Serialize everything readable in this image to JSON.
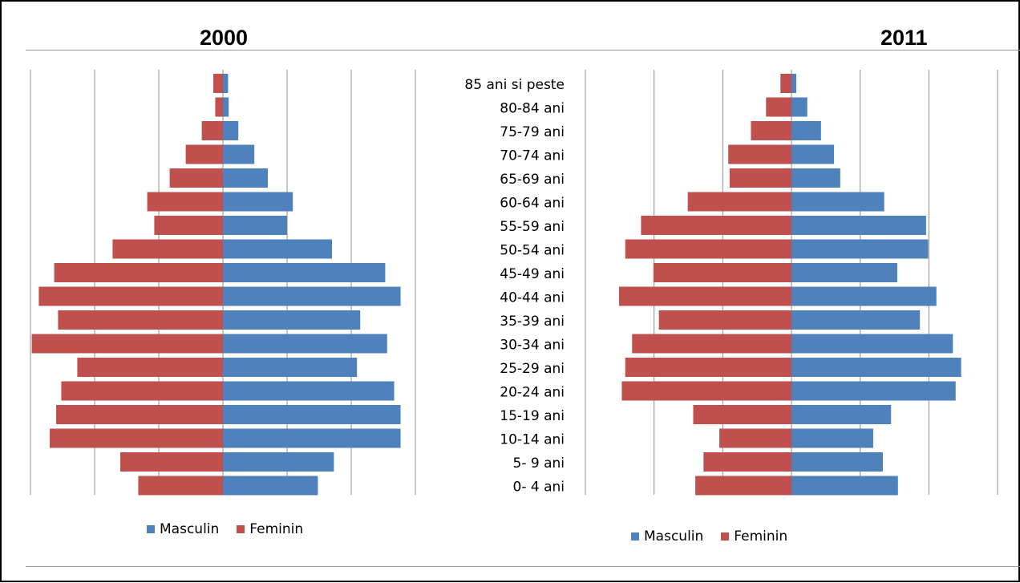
{
  "colors": {
    "masculin": "#4f81bd",
    "feminin": "#c0504d",
    "grid": "#8c8c8c"
  },
  "legend": {
    "masculin": "Masculin",
    "feminin": "Feminin"
  },
  "age_groups": [
    "85 ani si peste",
    "80-84 ani",
    "75-79 ani",
    "70-74 ani",
    "65-69 ani",
    "60-64 ani",
    "55-59 ani",
    "50-54 ani",
    "45-49 ani",
    "40-44 ani",
    "35-39 ani",
    "30-34 ani",
    "25-29 ani",
    "20-24 ani",
    "15-19 ani",
    "10-14 ani",
    "5- 9 ani",
    "0- 4 ani"
  ],
  "chart_data": [
    {
      "type": "bar",
      "title": "2000",
      "categories": [
        "85 ani si peste",
        "80-84 ani",
        "75-79 ani",
        "70-74 ani",
        "65-69 ani",
        "60-64 ani",
        "55-59 ani",
        "50-54 ani",
        "45-49 ani",
        "40-44 ani",
        "35-39 ani",
        "30-34 ani",
        "25-29 ani",
        "20-24 ani",
        "15-19 ani",
        "10-14 ani",
        "5- 9 ani",
        "0- 4 ani"
      ],
      "series": [
        {
          "name": "Masculin",
          "values": [
            0.08,
            0.09,
            0.24,
            0.49,
            0.7,
            1.09,
            1.0,
            1.7,
            2.53,
            2.77,
            2.14,
            2.56,
            2.09,
            2.67,
            2.77,
            2.77,
            1.73,
            1.48
          ]
        },
        {
          "name": "Feminin",
          "values": [
            0.15,
            0.12,
            0.33,
            0.58,
            0.83,
            1.18,
            1.07,
            1.72,
            2.63,
            2.87,
            2.57,
            2.98,
            2.27,
            2.52,
            2.6,
            2.7,
            1.6,
            1.32
          ]
        }
      ],
      "xlim": [
        -3.0,
        3.0
      ],
      "xticks": [
        -3,
        -2,
        -1,
        0,
        1,
        2,
        3
      ],
      "grid": true,
      "legend_position": "bottom"
    },
    {
      "type": "bar",
      "title": "2011",
      "categories": [
        "85 ani si peste",
        "80-84 ani",
        "75-79 ani",
        "70-74 ani",
        "65-69 ani",
        "60-64 ani",
        "55-59 ani",
        "50-54 ani",
        "45-49 ani",
        "40-44 ani",
        "35-39 ani",
        "30-34 ani",
        "25-29 ani",
        "20-24 ani",
        "15-19 ani",
        "10-14 ani",
        "5- 9 ani",
        "0- 4 ani"
      ],
      "series": [
        {
          "name": "Masculin",
          "values": [
            0.07,
            0.23,
            0.43,
            0.62,
            0.71,
            1.35,
            1.96,
            1.99,
            1.54,
            2.11,
            1.87,
            2.35,
            2.47,
            2.39,
            1.45,
            1.19,
            1.33,
            1.55
          ]
        },
        {
          "name": "Feminin",
          "values": [
            0.16,
            0.37,
            0.59,
            0.92,
            0.9,
            1.51,
            2.19,
            2.42,
            2.01,
            2.51,
            1.93,
            2.32,
            2.42,
            2.47,
            1.43,
            1.05,
            1.28,
            1.4
          ]
        }
      ],
      "xlim": [
        -3.0,
        3.0
      ],
      "xticks": [
        -3,
        -2,
        -1,
        0,
        1,
        2,
        3
      ],
      "grid": true,
      "legend_position": "bottom"
    }
  ]
}
